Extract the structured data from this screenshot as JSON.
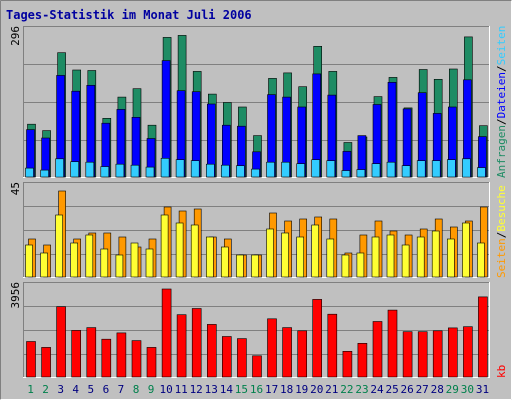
{
  "chart_data": {
    "type": "bar",
    "title": "Tages-Statistik im Monat Juli 2006",
    "categories": [
      "1",
      "2",
      "3",
      "4",
      "5",
      "6",
      "7",
      "8",
      "9",
      "10",
      "11",
      "12",
      "13",
      "14",
      "15",
      "16",
      "17",
      "18",
      "19",
      "20",
      "21",
      "22",
      "23",
      "24",
      "25",
      "26",
      "27",
      "28",
      "29",
      "30",
      "31"
    ],
    "weekend_days": [
      "1",
      "2",
      "8",
      "9",
      "15",
      "16",
      "22",
      "23",
      "29",
      "30"
    ],
    "panels": [
      {
        "max_label": "296",
        "ylim": [
          0,
          296
        ],
        "series": [
          {
            "name": "Anfragen",
            "color": "#1e8c64",
            "values": [
              107,
              94,
              252,
              217,
              216,
              119,
              162,
              179,
              105,
              283,
              287,
              214,
              168,
              151,
              142,
              84,
              200,
              211,
              183,
              265,
              214,
              70,
              81,
              163,
              202,
              140,
              218,
              198,
              219,
              284,
              104
            ]
          },
          {
            "name": "Dateien",
            "color": "#0000ff",
            "values": [
              96,
              79,
              206,
              174,
              186,
              109,
              137,
              121,
              78,
              236,
              175,
              173,
              148,
              105,
              103,
              51,
              167,
              162,
              142,
              209,
              166,
              52,
              84,
              147,
              192,
              138,
              171,
              129,
              142,
              197,
              82
            ]
          },
          {
            "name": "Seiten",
            "color": "#33ccff",
            "values": [
              18,
              14,
              37,
              31,
              30,
              21,
              26,
              24,
              20,
              38,
              35,
              33,
              26,
              24,
              23,
              16,
              30,
              30,
              27,
              35,
              33,
              13,
              15,
              27,
              30,
              23,
              33,
              33,
              35,
              37,
              19
            ]
          }
        ]
      },
      {
        "max_label": "45",
        "ylim": [
          0,
          45
        ],
        "series": [
          {
            "name": "Besuche",
            "color": "#ffff33",
            "values": [
              16,
              12,
              31,
              17,
              21,
              14,
              11,
              17,
              14,
              31,
              27,
              26,
              20,
              15,
              11,
              11,
              24,
              22,
              20,
              26,
              19,
              11,
              12,
              20,
              21,
              16,
              20,
              23,
              19,
              27,
              17
            ]
          },
          {
            "name": "Seiten",
            "color": "#ff9900",
            "values": [
              19,
              16,
              43,
              19,
              22,
              22,
              20,
              15,
              19,
              35,
              33,
              34,
              20,
              19,
              11,
              11,
              32,
              28,
              29,
              30,
              29,
              12,
              21,
              28,
              23,
              21,
              24,
              29,
              25,
              28,
              35
            ]
          }
        ]
      },
      {
        "max_label": "3956",
        "ylim": [
          0,
          3956
        ],
        "series": [
          {
            "name": "kb",
            "color": "#ff0000",
            "values": [
              1560,
              1300,
              3090,
              2050,
              2170,
              1660,
              1940,
              1600,
              1300,
              3870,
              2740,
              3010,
              2310,
              1780,
              1690,
              930,
              2560,
              2170,
              2030,
              3410,
              2760,
              1130,
              1480,
              2440,
              2940,
              1990,
              1990,
              2030,
              2160,
              2210,
              3520
            ]
          }
        ]
      }
    ],
    "legend_right": [
      {
        "text": "Anfragen",
        "color": "#1e8c64"
      },
      {
        "text": "/",
        "color": "#000000"
      },
      {
        "text": "Dateien",
        "color": "#0000ff"
      },
      {
        "text": "/",
        "color": "#000000"
      },
      {
        "text": "Seiten",
        "color": "#33ccff"
      },
      {
        "text": "Seiten",
        "color": "#ff9900"
      },
      {
        "text": "/",
        "color": "#000000"
      },
      {
        "text": "Besuche",
        "color": "#ffff33"
      },
      {
        "text": "kb",
        "color": "#ff0000"
      }
    ],
    "grid": true,
    "colors": {
      "background": "#c0c0c0",
      "title": "#0000a0",
      "grid": "#808080",
      "weekday_label": "#000080",
      "weekend_label": "#00804c"
    }
  }
}
